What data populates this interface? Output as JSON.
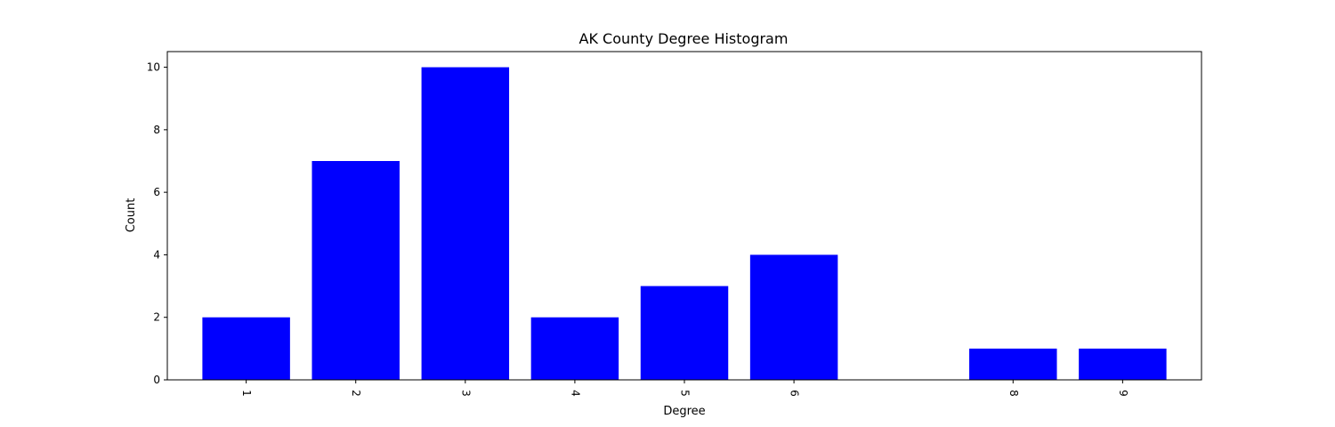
{
  "chart_data": {
    "type": "bar",
    "title": "AK County Degree Histogram",
    "xlabel": "Degree",
    "ylabel": "Count",
    "x": [
      1,
      2,
      3,
      4,
      5,
      6,
      8,
      9
    ],
    "values": [
      2,
      7,
      10,
      2,
      3,
      4,
      1,
      1
    ],
    "xtick_labels": [
      "1",
      "2",
      "3",
      "4",
      "5",
      "6",
      "8",
      "9"
    ],
    "yticks": [
      0,
      2,
      4,
      6,
      8,
      10
    ],
    "ytick_labels": [
      "0",
      "2",
      "4",
      "6",
      "8",
      "10"
    ],
    "xlim": [
      0.28,
      9.72
    ],
    "ylim": [
      0,
      10.5
    ],
    "bar_color": "#0000ff",
    "grid": false,
    "legend": "none"
  }
}
